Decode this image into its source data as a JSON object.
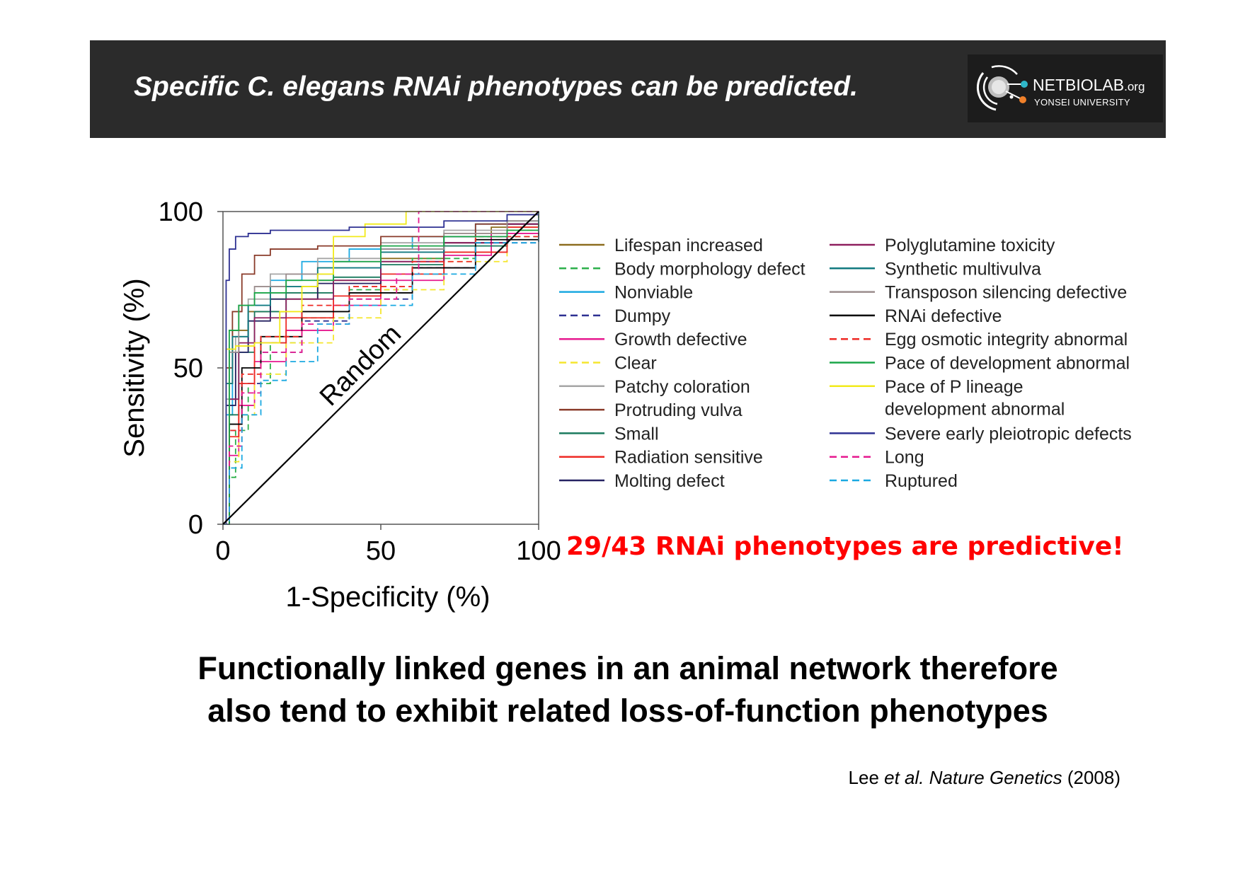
{
  "header": {
    "title": "Specific C. elegans RNAi phenotypes can be predicted.",
    "logo": {
      "name": "NETBIOLAB",
      "suffix": ".org",
      "subtitle": "YONSEI UNIVERSITY"
    }
  },
  "chart_data": {
    "type": "line",
    "xlabel": "1-Specificity (%)",
    "ylabel": "Sensitivity (%)",
    "xlim": [
      0,
      100
    ],
    "ylim": [
      0,
      100
    ],
    "x_ticks": [
      0,
      50,
      100
    ],
    "y_ticks": [
      0,
      50,
      100
    ],
    "diagonal_label": "Random",
    "legend_placement": "right",
    "series": [
      {
        "name": "Lifespan increased",
        "color": "#8c6d1f",
        "dash": "solid",
        "points": [
          [
            0,
            0
          ],
          [
            1,
            45
          ],
          [
            3,
            62
          ],
          [
            8,
            68
          ],
          [
            15,
            72
          ],
          [
            30,
            78
          ],
          [
            50,
            85
          ],
          [
            70,
            90
          ],
          [
            85,
            95
          ],
          [
            100,
            100
          ]
        ]
      },
      {
        "name": "Body morphology defect",
        "color": "#2db04b",
        "dash": "dashed",
        "points": [
          [
            0,
            0
          ],
          [
            2,
            15
          ],
          [
            4,
            30
          ],
          [
            8,
            45
          ],
          [
            15,
            58
          ],
          [
            25,
            66
          ],
          [
            40,
            75
          ],
          [
            60,
            85
          ],
          [
            80,
            92
          ],
          [
            100,
            100
          ]
        ]
      },
      {
        "name": "Nonviable",
        "color": "#1ba9e1",
        "dash": "solid",
        "points": [
          [
            0,
            0
          ],
          [
            1,
            35
          ],
          [
            3,
            55
          ],
          [
            8,
            70
          ],
          [
            15,
            78
          ],
          [
            25,
            84
          ],
          [
            40,
            88
          ],
          [
            60,
            92
          ],
          [
            80,
            96
          ],
          [
            100,
            100
          ]
        ]
      },
      {
        "name": "Dumpy",
        "color": "#2e3192",
        "dash": "dashed",
        "points": [
          [
            0,
            0
          ],
          [
            2,
            30
          ],
          [
            6,
            45
          ],
          [
            12,
            55
          ],
          [
            25,
            65
          ],
          [
            40,
            72
          ],
          [
            60,
            82
          ],
          [
            80,
            90
          ],
          [
            100,
            100
          ]
        ]
      },
      {
        "name": "Growth defective",
        "color": "#e6198f",
        "dash": "solid",
        "points": [
          [
            0,
            0
          ],
          [
            2,
            22
          ],
          [
            5,
            38
          ],
          [
            10,
            52
          ],
          [
            20,
            62
          ],
          [
            35,
            70
          ],
          [
            50,
            78
          ],
          [
            70,
            86
          ],
          [
            85,
            93
          ],
          [
            100,
            100
          ]
        ]
      },
      {
        "name": "Clear",
        "color": "#f5e62e",
        "dash": "dashed",
        "points": [
          [
            0,
            0
          ],
          [
            2,
            20
          ],
          [
            5,
            35
          ],
          [
            10,
            48
          ],
          [
            20,
            58
          ],
          [
            35,
            66
          ],
          [
            50,
            75
          ],
          [
            70,
            84
          ],
          [
            90,
            94
          ],
          [
            100,
            100
          ]
        ]
      },
      {
        "name": "Patchy coloration",
        "color": "#a6a6a6",
        "dash": "solid",
        "points": [
          [
            0,
            0
          ],
          [
            1,
            40
          ],
          [
            4,
            60
          ],
          [
            8,
            72
          ],
          [
            15,
            80
          ],
          [
            30,
            85
          ],
          [
            50,
            90
          ],
          [
            70,
            94
          ],
          [
            90,
            97
          ],
          [
            100,
            100
          ]
        ]
      },
      {
        "name": "Protruding vulva",
        "color": "#8a3b2a",
        "dash": "solid",
        "points": [
          [
            0,
            0
          ],
          [
            1,
            50
          ],
          [
            3,
            68
          ],
          [
            6,
            80
          ],
          [
            10,
            86
          ],
          [
            15,
            88
          ],
          [
            30,
            89
          ],
          [
            50,
            92
          ],
          [
            80,
            96
          ],
          [
            100,
            100
          ]
        ]
      },
      {
        "name": "Small",
        "color": "#1a7a5e",
        "dash": "solid",
        "points": [
          [
            0,
            0
          ],
          [
            2,
            35
          ],
          [
            5,
            55
          ],
          [
            10,
            68
          ],
          [
            20,
            74
          ],
          [
            35,
            79
          ],
          [
            50,
            83
          ],
          [
            70,
            89
          ],
          [
            90,
            96
          ],
          [
            100,
            100
          ]
        ]
      },
      {
        "name": "Radiation sensitive",
        "color": "#ee2a24",
        "dash": "solid",
        "points": [
          [
            0,
            0
          ],
          [
            2,
            28
          ],
          [
            5,
            45
          ],
          [
            10,
            58
          ],
          [
            20,
            66
          ],
          [
            35,
            73
          ],
          [
            50,
            80
          ],
          [
            70,
            87
          ],
          [
            90,
            95
          ],
          [
            100,
            100
          ]
        ]
      },
      {
        "name": "Molting defect",
        "color": "#262262",
        "dash": "solid",
        "points": [
          [
            0,
            0
          ],
          [
            1,
            38
          ],
          [
            4,
            55
          ],
          [
            8,
            65
          ],
          [
            15,
            72
          ],
          [
            30,
            77
          ],
          [
            50,
            84
          ],
          [
            70,
            90
          ],
          [
            90,
            96
          ],
          [
            100,
            100
          ]
        ]
      },
      {
        "name": "Polyglutamine toxicity",
        "color": "#8e1f5e",
        "dash": "solid",
        "points": [
          [
            0,
            0
          ],
          [
            2,
            40
          ],
          [
            5,
            58
          ],
          [
            10,
            66
          ],
          [
            20,
            72
          ],
          [
            35,
            78
          ],
          [
            50,
            84
          ],
          [
            70,
            90
          ],
          [
            90,
            96
          ],
          [
            100,
            100
          ]
        ]
      },
      {
        "name": "Synthetic multivulva",
        "color": "#127a80",
        "dash": "solid",
        "points": [
          [
            0,
            0
          ],
          [
            1,
            45
          ],
          [
            3,
            60
          ],
          [
            8,
            70
          ],
          [
            15,
            76
          ],
          [
            30,
            82
          ],
          [
            50,
            87
          ],
          [
            70,
            92
          ],
          [
            90,
            97
          ],
          [
            100,
            100
          ]
        ]
      },
      {
        "name": "Transposon silencing defective",
        "color": "#9b8d8d",
        "dash": "solid",
        "points": [
          [
            0,
            0
          ],
          [
            2,
            55
          ],
          [
            5,
            70
          ],
          [
            10,
            76
          ],
          [
            20,
            80
          ],
          [
            35,
            84
          ],
          [
            50,
            88
          ],
          [
            70,
            93
          ],
          [
            90,
            97
          ],
          [
            100,
            100
          ]
        ]
      },
      {
        "name": "RNAi defective",
        "color": "#000000",
        "dash": "solid",
        "points": [
          [
            0,
            0
          ],
          [
            2,
            32
          ],
          [
            6,
            50
          ],
          [
            12,
            60
          ],
          [
            25,
            68
          ],
          [
            40,
            74
          ],
          [
            60,
            82
          ],
          [
            80,
            91
          ],
          [
            100,
            100
          ]
        ]
      },
      {
        "name": "Egg osmotic integrity abnormal",
        "color": "#ee2a24",
        "dash": "dashed",
        "points": [
          [
            0,
            0
          ],
          [
            2,
            30
          ],
          [
            6,
            48
          ],
          [
            12,
            60
          ],
          [
            25,
            70
          ],
          [
            40,
            76
          ],
          [
            60,
            84
          ],
          [
            80,
            92
          ],
          [
            100,
            100
          ]
        ]
      },
      {
        "name": "Pace of development abnormal",
        "color": "#1aa548",
        "dash": "solid",
        "points": [
          [
            0,
            0
          ],
          [
            2,
            62
          ],
          [
            5,
            70
          ],
          [
            10,
            74
          ],
          [
            20,
            78
          ],
          [
            35,
            84
          ],
          [
            50,
            89
          ],
          [
            70,
            92
          ],
          [
            90,
            94
          ],
          [
            100,
            100
          ]
        ]
      },
      {
        "name": "Pace of P lineage development abnormal",
        "color": "#f2ea1b",
        "dash": "solid",
        "points": [
          [
            0,
            0
          ],
          [
            1,
            56
          ],
          [
            4,
            57
          ],
          [
            10,
            58
          ],
          [
            18,
            68
          ],
          [
            25,
            76
          ],
          [
            30,
            80
          ],
          [
            35,
            92
          ],
          [
            45,
            96
          ],
          [
            58,
            100
          ],
          [
            100,
            100
          ]
        ]
      },
      {
        "name": "Severe early pleiotropic defects",
        "color": "#2e3192",
        "dash": "solid",
        "points": [
          [
            0,
            0
          ],
          [
            1,
            78
          ],
          [
            2,
            88
          ],
          [
            4,
            92
          ],
          [
            8,
            93
          ],
          [
            15,
            94
          ],
          [
            40,
            95
          ],
          [
            70,
            97
          ],
          [
            90,
            99
          ],
          [
            100,
            100
          ]
        ]
      },
      {
        "name": "Long",
        "color": "#e6198f",
        "dash": "dashed",
        "points": [
          [
            0,
            0
          ],
          [
            2,
            25
          ],
          [
            6,
            42
          ],
          [
            12,
            55
          ],
          [
            25,
            64
          ],
          [
            40,
            72
          ],
          [
            55,
            80
          ],
          [
            62,
            100
          ],
          [
            100,
            100
          ]
        ]
      },
      {
        "name": "Ruptured",
        "color": "#1ba9e1",
        "dash": "dashed",
        "points": [
          [
            0,
            0
          ],
          [
            2,
            18
          ],
          [
            6,
            35
          ],
          [
            12,
            46
          ],
          [
            20,
            52
          ],
          [
            30,
            64
          ],
          [
            40,
            70
          ],
          [
            60,
            80
          ],
          [
            80,
            90
          ],
          [
            100,
            100
          ]
        ]
      }
    ],
    "annotation": "29/43 RNAi phenotypes are predictive!"
  },
  "legend_lines": {
    "pace_p_lineage_line1": "Pace of P lineage",
    "pace_p_lineage_line2": "development abnormal"
  },
  "summary": {
    "line1": "Functionally linked genes in an animal network therefore",
    "line2": "also tend to exhibit related loss-of-function phenotypes"
  },
  "citation": {
    "author": "Lee ",
    "etal": "et al. Nature Genetics",
    "year": " (2008)"
  }
}
